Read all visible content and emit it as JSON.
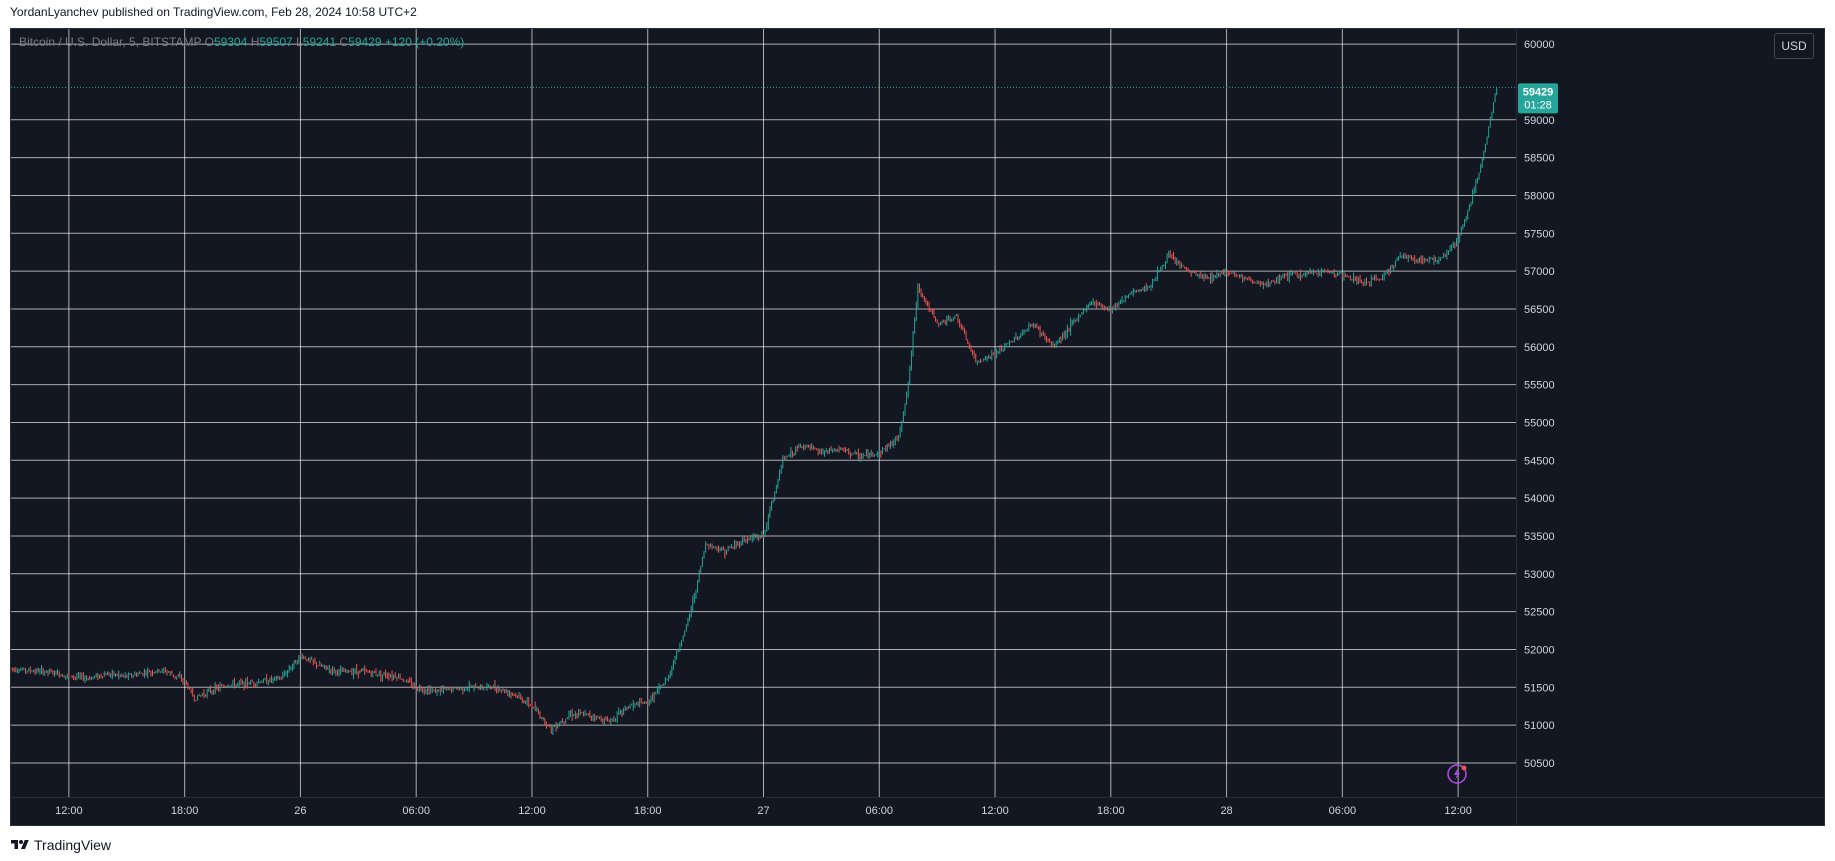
{
  "header": {
    "publish_line": "YordanLyanchev published on TradingView.com, Feb 28, 2024 10:58 UTC+2"
  },
  "legend": {
    "symbol": "Bitcoin / U.S. Dollar, 5, BITSTAMP",
    "open_label": "O",
    "open": "59304",
    "high_label": "H",
    "high": "59507",
    "low_label": "L",
    "low": "59241",
    "close_label": "C",
    "close": "59429",
    "change": "+120 (+0.20%)"
  },
  "currency_button": "USD",
  "price_badge": {
    "price": "59429",
    "countdown": "01:28"
  },
  "footer": {
    "brand": "TradingView"
  },
  "colors": {
    "up": "#26a69a",
    "down": "#ef5350",
    "background": "#131722",
    "grid": "#ffffff",
    "text": "#d1d4dc"
  },
  "icons": {
    "footer_logo": "tradingview-logo-icon",
    "badge": "lightning-icon"
  },
  "chart_data": {
    "type": "candlestick",
    "symbol": "BTCUSD",
    "interval": "5",
    "y_axis": {
      "ticks": [
        50500,
        51000,
        51500,
        52000,
        52500,
        53000,
        53500,
        54000,
        54500,
        55000,
        55500,
        56000,
        56500,
        57000,
        57500,
        58000,
        58500,
        59000,
        60000
      ],
      "ylim": [
        50050,
        60200
      ],
      "position": "right"
    },
    "x_axis": {
      "ticks": [
        "12:00",
        "18:00",
        "26",
        "06:00",
        "12:00",
        "18:00",
        "27",
        "06:00",
        "12:00",
        "18:00",
        "28",
        "06:00",
        "12:00"
      ],
      "tick_hours": [
        0,
        6,
        12,
        18,
        24,
        30,
        36,
        42,
        48,
        54,
        60,
        66,
        72
      ],
      "xlim_hours": [
        -3,
        75
      ]
    },
    "grid": true,
    "last_price": 59429,
    "price_path": [
      [
        -3,
        51750
      ],
      [
        -2,
        51720
      ],
      [
        -1,
        51700
      ],
      [
        0,
        51650
      ],
      [
        1,
        51620
      ],
      [
        2,
        51680
      ],
      [
        3,
        51640
      ],
      [
        4,
        51700
      ],
      [
        5,
        51720
      ],
      [
        6,
        51580
      ],
      [
        6.5,
        51350
      ],
      [
        7,
        51420
      ],
      [
        8,
        51520
      ],
      [
        9,
        51550
      ],
      [
        10,
        51580
      ],
      [
        11,
        51620
      ],
      [
        12,
        51920
      ],
      [
        13,
        51780
      ],
      [
        14,
        51700
      ],
      [
        15,
        51720
      ],
      [
        16,
        51680
      ],
      [
        17,
        51650
      ],
      [
        18,
        51500
      ],
      [
        19,
        51450
      ],
      [
        20,
        51480
      ],
      [
        21,
        51500
      ],
      [
        22,
        51500
      ],
      [
        23,
        51420
      ],
      [
        24,
        51250
      ],
      [
        24.5,
        51100
      ],
      [
        25,
        50950
      ],
      [
        26,
        51150
      ],
      [
        27,
        51130
      ],
      [
        28,
        51050
      ],
      [
        29,
        51250
      ],
      [
        30,
        51300
      ],
      [
        31,
        51600
      ],
      [
        32,
        52300
      ],
      [
        32.5,
        52800
      ],
      [
        33,
        53400
      ],
      [
        34,
        53300
      ],
      [
        35,
        53450
      ],
      [
        36,
        53500
      ],
      [
        37,
        54500
      ],
      [
        38,
        54700
      ],
      [
        39,
        54600
      ],
      [
        40,
        54650
      ],
      [
        41,
        54550
      ],
      [
        42,
        54600
      ],
      [
        43,
        54800
      ],
      [
        43.5,
        55500
      ],
      [
        44,
        56800
      ],
      [
        45,
        56300
      ],
      [
        46,
        56400
      ],
      [
        47,
        55800
      ],
      [
        48,
        55900
      ],
      [
        49,
        56100
      ],
      [
        50,
        56300
      ],
      [
        51,
        56000
      ],
      [
        52,
        56300
      ],
      [
        53,
        56600
      ],
      [
        54,
        56500
      ],
      [
        55,
        56700
      ],
      [
        56,
        56800
      ],
      [
        57,
        57200
      ],
      [
        58,
        57000
      ],
      [
        59,
        56900
      ],
      [
        60,
        57000
      ],
      [
        61,
        56900
      ],
      [
        62,
        56800
      ],
      [
        63,
        56950
      ],
      [
        64,
        56950
      ],
      [
        65,
        57000
      ],
      [
        66,
        56950
      ],
      [
        67,
        56850
      ],
      [
        68,
        56900
      ],
      [
        69,
        57200
      ],
      [
        70,
        57150
      ],
      [
        71,
        57150
      ],
      [
        72,
        57400
      ],
      [
        73,
        58200
      ],
      [
        73.5,
        58800
      ],
      [
        74,
        59429
      ]
    ]
  }
}
